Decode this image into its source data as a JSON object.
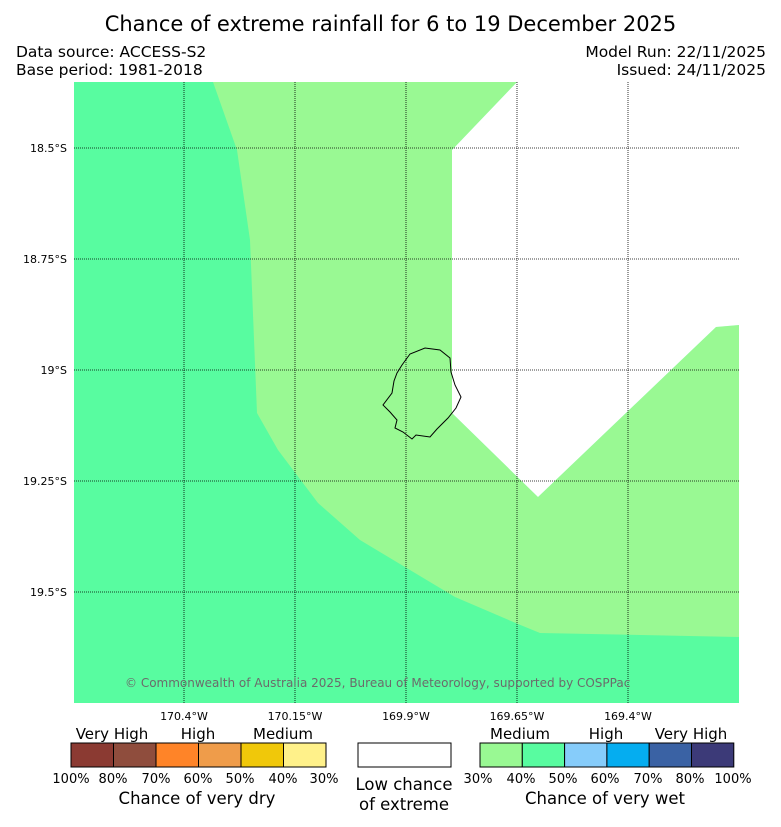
{
  "header": {
    "title": "Chance of extreme rainfall for 6 to 19 December 2025",
    "data_source": "Data source: ACCESS-S2",
    "base_period": "Base period: 1981-2018",
    "model_run": "Model Run: 22/11/2025",
    "issued": "Issued: 24/11/2025"
  },
  "map": {
    "lat_labels": [
      "18.5°S",
      "18.75°S",
      "19°S",
      "19.25°S",
      "19.5°S"
    ],
    "lon_labels": [
      "170.4°W",
      "170.15°W",
      "169.9°W",
      "169.65°W",
      "169.4°W"
    ],
    "copyright": "© Commonwealth of Australia 2025, Bureau of Meteorology, supported by COSPPac",
    "colors": {
      "wet_medium_30_40": "#99f993",
      "wet_medium_40_50": "#58fca0",
      "low_chance": "#ffffff"
    }
  },
  "legend": {
    "dry": {
      "categories": [
        "Very High",
        "High",
        "Medium"
      ],
      "percents": [
        "100%",
        "80%",
        "70%",
        "60%",
        "50%",
        "40%",
        "30%"
      ],
      "colors": [
        "#8b3a32",
        "#8f4d3d",
        "#ff8428",
        "#ef9c4a",
        "#f0c80a",
        "#fff18a"
      ],
      "label": "Chance of very dry"
    },
    "low": {
      "label_line1": "Low chance",
      "label_line2": "of extreme",
      "color": "#ffffff"
    },
    "wet": {
      "categories": [
        "Medium",
        "High",
        "Very High"
      ],
      "percents": [
        "30%",
        "40%",
        "50%",
        "60%",
        "70%",
        "80%",
        "100%"
      ],
      "colors": [
        "#99f993",
        "#58fca0",
        "#86ccfa",
        "#05adf0",
        "#3a62a4",
        "#3c3a78"
      ],
      "label": "Chance of very wet"
    }
  }
}
